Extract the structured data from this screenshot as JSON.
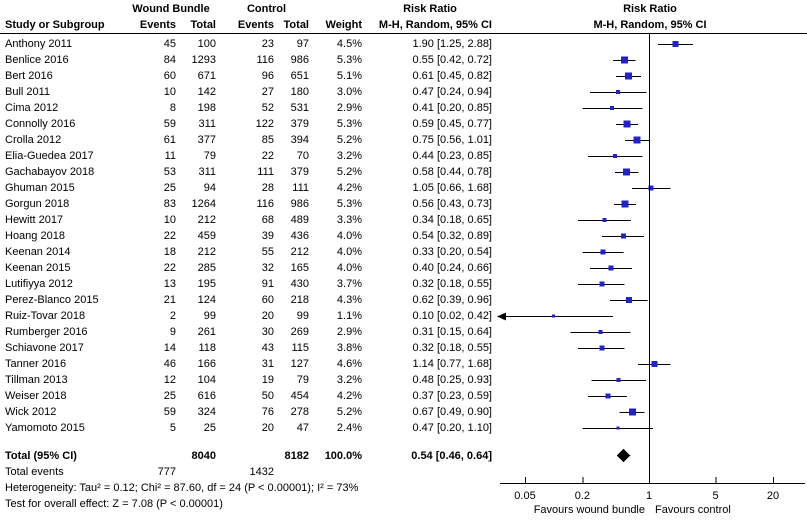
{
  "header": {
    "study_col": "Study or Subgroup",
    "group1": "Wound Bundle",
    "group2": "Control",
    "events": "Events",
    "total": "Total",
    "weight": "Weight",
    "rr_title": "Risk Ratio",
    "rr_sub": "M-H, Random, 95% CI"
  },
  "chart_data": {
    "type": "forest_plot",
    "x_scale": "log",
    "effect_measure": "Risk Ratio (M-H, Random, 95% CI)",
    "axis": {
      "ticks": [
        0.05,
        0.2,
        1,
        5,
        20
      ],
      "tick_labels": [
        "0.05",
        "0.2",
        "1",
        "5",
        "20"
      ],
      "center_line": 1,
      "left_label": "Favours wound bundle",
      "right_label": "Favours control"
    },
    "studies": [
      {
        "name": "Anthony 2011",
        "e1": "45",
        "t1": "100",
        "e2": "23",
        "t2": "97",
        "weight": "4.5%",
        "w": 4.5,
        "rr_text": "1.90 [1.25, 2.88]",
        "rr": 1.9,
        "lo": 1.25,
        "hi": 2.88
      },
      {
        "name": "Benlice 2016",
        "e1": "84",
        "t1": "1293",
        "e2": "116",
        "t2": "986",
        "weight": "5.3%",
        "w": 5.3,
        "rr_text": "0.55 [0.42, 0.72]",
        "rr": 0.55,
        "lo": 0.42,
        "hi": 0.72
      },
      {
        "name": "Bert 2016",
        "e1": "60",
        "t1": "671",
        "e2": "96",
        "t2": "651",
        "weight": "5.1%",
        "w": 5.1,
        "rr_text": "0.61 [0.45, 0.82]",
        "rr": 0.61,
        "lo": 0.45,
        "hi": 0.82
      },
      {
        "name": "Bull 2011",
        "e1": "10",
        "t1": "142",
        "e2": "27",
        "t2": "180",
        "weight": "3.0%",
        "w": 3.0,
        "rr_text": "0.47 [0.24, 0.94]",
        "rr": 0.47,
        "lo": 0.24,
        "hi": 0.94
      },
      {
        "name": "Cima 2012",
        "e1": "8",
        "t1": "198",
        "e2": "52",
        "t2": "531",
        "weight": "2.9%",
        "w": 2.9,
        "rr_text": "0.41 [0.20, 0.85]",
        "rr": 0.41,
        "lo": 0.2,
        "hi": 0.85
      },
      {
        "name": "Connolly 2016",
        "e1": "59",
        "t1": "311",
        "e2": "122",
        "t2": "379",
        "weight": "5.3%",
        "w": 5.3,
        "rr_text": "0.59 [0.45, 0.77]",
        "rr": 0.59,
        "lo": 0.45,
        "hi": 0.77
      },
      {
        "name": "Crolla 2012",
        "e1": "61",
        "t1": "377",
        "e2": "85",
        "t2": "394",
        "weight": "5.2%",
        "w": 5.2,
        "rr_text": "0.75 [0.56, 1.01]",
        "rr": 0.75,
        "lo": 0.56,
        "hi": 1.01
      },
      {
        "name": "Elia-Guedea 2017",
        "e1": "11",
        "t1": "79",
        "e2": "22",
        "t2": "70",
        "weight": "3.2%",
        "w": 3.2,
        "rr_text": "0.44 [0.23, 0.85]",
        "rr": 0.44,
        "lo": 0.23,
        "hi": 0.85
      },
      {
        "name": "Gachabayov 2018",
        "e1": "53",
        "t1": "311",
        "e2": "111",
        "t2": "379",
        "weight": "5.2%",
        "w": 5.2,
        "rr_text": "0.58 [0.44, 0.78]",
        "rr": 0.58,
        "lo": 0.44,
        "hi": 0.78
      },
      {
        "name": "Ghuman 2015",
        "e1": "25",
        "t1": "94",
        "e2": "28",
        "t2": "111",
        "weight": "4.2%",
        "w": 4.2,
        "rr_text": "1.05 [0.66, 1.68]",
        "rr": 1.05,
        "lo": 0.66,
        "hi": 1.68
      },
      {
        "name": "Gorgun 2018",
        "e1": "83",
        "t1": "1264",
        "e2": "116",
        "t2": "986",
        "weight": "5.3%",
        "w": 5.3,
        "rr_text": "0.56 [0.43, 0.73]",
        "rr": 0.56,
        "lo": 0.43,
        "hi": 0.73
      },
      {
        "name": "Hewitt 2017",
        "e1": "10",
        "t1": "212",
        "e2": "68",
        "t2": "489",
        "weight": "3.3%",
        "w": 3.3,
        "rr_text": "0.34 [0.18, 0.65]",
        "rr": 0.34,
        "lo": 0.18,
        "hi": 0.65
      },
      {
        "name": "Hoang 2018",
        "e1": "22",
        "t1": "459",
        "e2": "39",
        "t2": "436",
        "weight": "4.0%",
        "w": 4.0,
        "rr_text": "0.54 [0.32, 0.89]",
        "rr": 0.54,
        "lo": 0.32,
        "hi": 0.89
      },
      {
        "name": "Keenan 2014",
        "e1": "18",
        "t1": "212",
        "e2": "55",
        "t2": "212",
        "weight": "4.0%",
        "w": 4.0,
        "rr_text": "0.33 [0.20, 0.54]",
        "rr": 0.33,
        "lo": 0.2,
        "hi": 0.54
      },
      {
        "name": "Keenan 2015",
        "e1": "22",
        "t1": "285",
        "e2": "32",
        "t2": "165",
        "weight": "4.0%",
        "w": 4.0,
        "rr_text": "0.40 [0.24, 0.66]",
        "rr": 0.4,
        "lo": 0.24,
        "hi": 0.66
      },
      {
        "name": "Lutifiyya 2012",
        "e1": "13",
        "t1": "195",
        "e2": "91",
        "t2": "430",
        "weight": "3.7%",
        "w": 3.7,
        "rr_text": "0.32 [0.18, 0.55]",
        "rr": 0.32,
        "lo": 0.18,
        "hi": 0.55
      },
      {
        "name": "Perez-Blanco 2015",
        "e1": "21",
        "t1": "124",
        "e2": "60",
        "t2": "218",
        "weight": "4.3%",
        "w": 4.3,
        "rr_text": "0.62 [0.39, 0.96]",
        "rr": 0.62,
        "lo": 0.39,
        "hi": 0.96
      },
      {
        "name": "Ruiz-Tovar 2018",
        "e1": "2",
        "t1": "99",
        "e2": "20",
        "t2": "99",
        "weight": "1.1%",
        "w": 1.1,
        "rr_text": "0.10 [0.02, 0.42]",
        "rr": 0.1,
        "lo": 0.02,
        "hi": 0.42
      },
      {
        "name": "Rumberger 2016",
        "e1": "9",
        "t1": "261",
        "e2": "30",
        "t2": "269",
        "weight": "2.9%",
        "w": 2.9,
        "rr_text": "0.31 [0.15, 0.64]",
        "rr": 0.31,
        "lo": 0.15,
        "hi": 0.64
      },
      {
        "name": "Schiavone 2017",
        "e1": "14",
        "t1": "118",
        "e2": "43",
        "t2": "115",
        "weight": "3.8%",
        "w": 3.8,
        "rr_text": "0.32 [0.18, 0.55]",
        "rr": 0.32,
        "lo": 0.18,
        "hi": 0.55
      },
      {
        "name": "Tanner 2016",
        "e1": "46",
        "t1": "166",
        "e2": "31",
        "t2": "127",
        "weight": "4.6%",
        "w": 4.6,
        "rr_text": "1.14 [0.77, 1.68]",
        "rr": 1.14,
        "lo": 0.77,
        "hi": 1.68
      },
      {
        "name": "Tillman 2013",
        "e1": "12",
        "t1": "104",
        "e2": "19",
        "t2": "79",
        "weight": "3.2%",
        "w": 3.2,
        "rr_text": "0.48 [0.25, 0.93]",
        "rr": 0.48,
        "lo": 0.25,
        "hi": 0.93
      },
      {
        "name": "Weiser 2018",
        "e1": "25",
        "t1": "616",
        "e2": "50",
        "t2": "454",
        "weight": "4.2%",
        "w": 4.2,
        "rr_text": "0.37 [0.23, 0.59]",
        "rr": 0.37,
        "lo": 0.23,
        "hi": 0.59
      },
      {
        "name": "Wick 2012",
        "e1": "59",
        "t1": "324",
        "e2": "76",
        "t2": "278",
        "weight": "5.2%",
        "w": 5.2,
        "rr_text": "0.67 [0.49, 0.90]",
        "rr": 0.67,
        "lo": 0.49,
        "hi": 0.9
      },
      {
        "name": "Yamomoto 2015",
        "e1": "5",
        "t1": "25",
        "e2": "20",
        "t2": "47",
        "weight": "2.4%",
        "w": 2.4,
        "rr_text": "0.47 [0.20, 1.10]",
        "rr": 0.47,
        "lo": 0.2,
        "hi": 1.1
      }
    ],
    "total": {
      "label": "Total (95% CI)",
      "t1": "8040",
      "t2": "8182",
      "weight": "100.0%",
      "rr_text": "0.54 [0.46, 0.64]",
      "rr": 0.54,
      "lo": 0.46,
      "hi": 0.64
    },
    "total_events": {
      "label": "Total events",
      "e1": "777",
      "e2": "1432"
    }
  },
  "footer": {
    "heterogeneity": "Heterogeneity: Tau² = 0.12; Chi² = 87.60, df = 24 (P < 0.00001); I² = 73%",
    "overall_effect": "Test for overall effect: Z = 7.08 (P < 0.00001)"
  },
  "colors": {
    "marker": "#2222CC",
    "line": "#000000",
    "diamond": "#000000",
    "text": "#000000"
  }
}
